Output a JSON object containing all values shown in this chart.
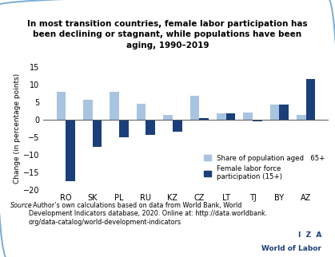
{
  "title": "In most transition countries, female labor participation has\nbeen declining or stagnant, while populations have been\naging, 1990–2019",
  "categories": [
    "RO",
    "SK",
    "PL",
    "RU",
    "KZ",
    "CZ",
    "LT",
    "TJ",
    "BY",
    "AZ"
  ],
  "population_aged": [
    8.0,
    5.6,
    7.9,
    4.5,
    1.4,
    6.8,
    1.7,
    2.0,
    4.2,
    1.4
  ],
  "female_labor": [
    -17.5,
    -7.7,
    -5.1,
    -4.2,
    -3.5,
    0.5,
    1.7,
    -0.5,
    4.2,
    11.5
  ],
  "color_pop": "#a8c4e0",
  "color_labor": "#1a3f7a",
  "ylabel": "Change (in percentage points)",
  "ylim": [
    -20,
    15
  ],
  "yticks": [
    -20,
    -15,
    -10,
    -5,
    0,
    5,
    10,
    15
  ],
  "legend_pop": "Share of population aged   65+",
  "legend_labor": "Female labor force\nparticipation (15+)",
  "source_text_italic": "Source",
  "source_text_normal": ": Author’s own calculations based on data from World Bank, World\nDevelopment Indicators database, 2020. Online at: http://data.worldbank.\norg/data-catalog/world-development-indicators",
  "iza_line1": "I  Z  A",
  "iza_line2": "World of Labor",
  "iza_color": "#1a3f7a",
  "background_color": "#ffffff",
  "border_color": "#7fb0d8"
}
